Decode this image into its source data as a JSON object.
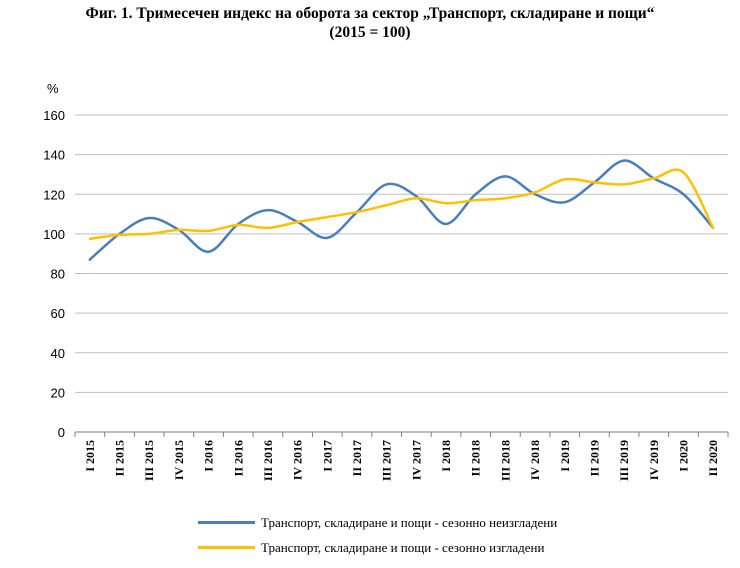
{
  "title_line1": "Фиг. 1. Тримесечен индекс на оборота за сектор „Транспорт, складиране и пощи“",
  "title_line2": "(2015 = 100)",
  "chart_data": {
    "type": "line",
    "title": "Фиг. 1. Тримесечен индекс на оборота за сектор „Транспорт, складиране и пощи“ (2015 = 100)",
    "ylabel": "%",
    "xlabel": "",
    "ylim": [
      0,
      160
    ],
    "yticks": [
      0,
      20,
      40,
      60,
      80,
      100,
      120,
      140,
      160
    ],
    "grid": true,
    "legend_position": "bottom",
    "categories": [
      "I 2015",
      "II 2015",
      "III 2015",
      "IV 2015",
      "I 2016",
      "II 2016",
      "III 2016",
      "IV 2016",
      "I 2017",
      "II 2017",
      "III 2017",
      "IV 2017",
      "I 2018",
      "II 2018",
      "III 2018",
      "IV 2018",
      "I 2019",
      "II 2019",
      "III 2019",
      "IV 2019",
      "I 2020",
      "II 2020"
    ],
    "series": [
      {
        "name": "Транспорт, складиране и пощи - сезонно неизгладени",
        "color": "#4a7eba",
        "values": [
          87,
          100,
          108,
          102,
          91,
          105,
          112,
          106,
          98,
          111,
          125,
          119,
          105,
          120,
          129,
          120,
          116,
          126,
          137,
          128,
          120,
          103
        ]
      },
      {
        "name": "Транспорт, складиране и пощи - сезонно изгладени",
        "color": "#ffc000",
        "values": [
          97.5,
          99.5,
          100,
          102,
          101.5,
          104.5,
          103,
          106,
          108.5,
          111,
          114.5,
          118,
          115.5,
          117,
          118,
          121,
          127.5,
          126,
          125,
          128,
          131,
          103
        ]
      }
    ]
  }
}
